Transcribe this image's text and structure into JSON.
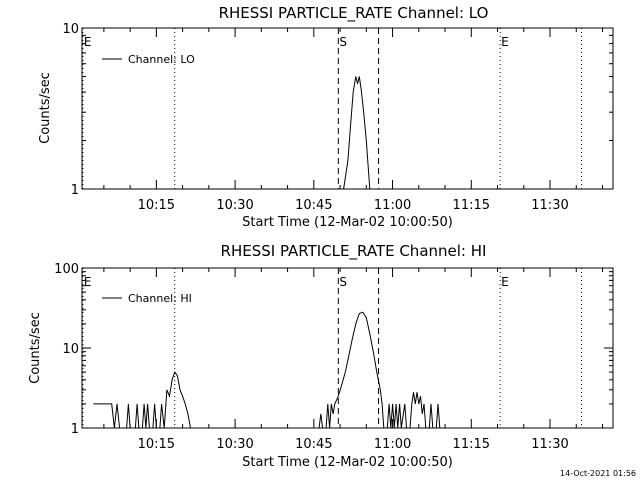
{
  "footer_stamp": "14-Oct-2021 01:56",
  "chart_data": [
    {
      "type": "line",
      "title": "RHESSI PARTICLE_RATE Channel: LO",
      "xlabel": "Start Time (12-Mar-02 10:00:50)",
      "ylabel": "Counts/sec",
      "y_scale": "log",
      "ylim": [
        1,
        10
      ],
      "y_ticks": [
        {
          "value": 1,
          "label": "1"
        },
        {
          "value": 10,
          "label": "10"
        }
      ],
      "xlim": [
        "10:00:50",
        "11:42:00"
      ],
      "x_ticks": [
        "10:15",
        "10:30",
        "10:45",
        "11:00",
        "11:15",
        "11:30"
      ],
      "legend": {
        "label": "Channel: LO",
        "placement": "top-left"
      },
      "markers": [
        {
          "time": "10:01:00",
          "label": "E",
          "style": "dotted"
        },
        {
          "time": "10:18:30",
          "label": "",
          "style": "dotted"
        },
        {
          "time": "10:49:40",
          "label": "S",
          "style": "dashed"
        },
        {
          "time": "10:57:20",
          "label": "",
          "style": "dashed"
        },
        {
          "time": "11:20:30",
          "label": "E",
          "style": "dotted"
        },
        {
          "time": "11:36:00",
          "label": "",
          "style": "dotted"
        }
      ],
      "series": [
        {
          "name": "Channel: LO",
          "points": [
            [
              "10:50:40",
              1
            ],
            [
              "10:51:30",
              1.5
            ],
            [
              "10:52:00",
              2.5
            ],
            [
              "10:52:30",
              4
            ],
            [
              "10:53:00",
              5
            ],
            [
              "10:53:20",
              4.5
            ],
            [
              "10:53:40",
              5
            ],
            [
              "10:54:00",
              4.2
            ],
            [
              "10:54:30",
              3
            ],
            [
              "10:55:00",
              2
            ],
            [
              "10:55:20",
              1.4
            ],
            [
              "10:55:40",
              1
            ]
          ]
        }
      ]
    },
    {
      "type": "line",
      "title": "RHESSI PARTICLE_RATE Channel: HI",
      "xlabel": "Start Time (12-Mar-02 10:00:50)",
      "ylabel": "Counts/sec",
      "y_scale": "log",
      "ylim": [
        1,
        100
      ],
      "y_ticks": [
        {
          "value": 1,
          "label": "1"
        },
        {
          "value": 10,
          "label": "10"
        },
        {
          "value": 100,
          "label": "100"
        }
      ],
      "xlim": [
        "10:00:50",
        "11:42:00"
      ],
      "x_ticks": [
        "10:15",
        "10:30",
        "10:45",
        "11:00",
        "11:15",
        "11:30"
      ],
      "legend": {
        "label": "Channel: HI",
        "placement": "top-left"
      },
      "markers": [
        {
          "time": "10:01:00",
          "label": "E",
          "style": "dotted"
        },
        {
          "time": "10:18:30",
          "label": "",
          "style": "dotted"
        },
        {
          "time": "10:49:40",
          "label": "S",
          "style": "dashed"
        },
        {
          "time": "10:57:20",
          "label": "",
          "style": "dashed"
        },
        {
          "time": "11:20:30",
          "label": "E",
          "style": "dotted"
        },
        {
          "time": "11:36:00",
          "label": "",
          "style": "dotted"
        }
      ],
      "series": [
        {
          "name": "Channel: HI",
          "points": [
            [
              "10:03:00",
              2
            ],
            [
              "10:06:30",
              2
            ],
            [
              "10:07:00",
              1
            ],
            [
              "10:07:30",
              2
            ],
            [
              "10:08:00",
              1
            ],
            [
              "10:09:20",
              1
            ],
            [
              "10:09:40",
              2
            ],
            [
              "10:10:00",
              1
            ],
            [
              "10:11:00",
              1
            ],
            [
              "10:11:20",
              2
            ],
            [
              "10:11:40",
              1
            ],
            [
              "10:12:20",
              1
            ],
            [
              "10:12:40",
              2
            ],
            [
              "10:13:00",
              1
            ],
            [
              "10:13:20",
              2
            ],
            [
              "10:13:40",
              1
            ],
            [
              "10:14:20",
              1
            ],
            [
              "10:14:40",
              2
            ],
            [
              "10:15:00",
              1
            ],
            [
              "10:15:40",
              1
            ],
            [
              "10:16:00",
              2
            ],
            [
              "10:16:30",
              1
            ],
            [
              "10:17:00",
              3
            ],
            [
              "10:17:30",
              2.5
            ],
            [
              "10:18:00",
              4
            ],
            [
              "10:18:30",
              5
            ],
            [
              "10:19:00",
              4.5
            ],
            [
              "10:19:30",
              3
            ],
            [
              "10:20:00",
              2.5
            ],
            [
              "10:20:30",
              2
            ],
            [
              "10:21:00",
              1.5
            ],
            [
              "10:21:30",
              1
            ],
            [
              "10:46:00",
              1
            ],
            [
              "10:46:20",
              1.5
            ],
            [
              "10:46:40",
              1
            ],
            [
              "10:47:20",
              1
            ],
            [
              "10:47:40",
              2
            ],
            [
              "10:48:00",
              1
            ],
            [
              "10:48:20",
              2
            ],
            [
              "10:48:40",
              1.5
            ],
            [
              "10:49:00",
              2
            ],
            [
              "10:49:40",
              2.5
            ],
            [
              "10:50:20",
              3.5
            ],
            [
              "10:51:00",
              5
            ],
            [
              "10:51:40",
              8
            ],
            [
              "10:52:20",
              13
            ],
            [
              "10:53:00",
              20
            ],
            [
              "10:53:40",
              27
            ],
            [
              "10:54:20",
              28
            ],
            [
              "10:55:00",
              24
            ],
            [
              "10:55:40",
              15
            ],
            [
              "10:56:20",
              9
            ],
            [
              "10:57:00",
              5
            ],
            [
              "10:57:40",
              3
            ],
            [
              "10:58:00",
              2
            ],
            [
              "10:58:20",
              1
            ],
            [
              "10:59:00",
              1
            ],
            [
              "10:59:20",
              2
            ],
            [
              "10:59:40",
              1
            ],
            [
              "11:00:00",
              2
            ],
            [
              "11:00:20",
              1
            ],
            [
              "11:00:40",
              2
            ],
            [
              "11:01:00",
              1
            ],
            [
              "11:01:20",
              2
            ],
            [
              "11:01:40",
              1
            ],
            [
              "11:02:20",
              2
            ],
            [
              "11:02:40",
              1
            ],
            [
              "11:03:20",
              1
            ],
            [
              "11:03:40",
              2
            ],
            [
              "11:04:00",
              2.8
            ],
            [
              "11:04:20",
              2
            ],
            [
              "11:04:40",
              2.8
            ],
            [
              "11:05:00",
              2
            ],
            [
              "11:05:20",
              2.5
            ],
            [
              "11:05:40",
              1.5
            ],
            [
              "11:06:00",
              2
            ],
            [
              "11:06:20",
              1
            ],
            [
              "11:07:00",
              1
            ],
            [
              "11:07:20",
              2
            ],
            [
              "11:07:40",
              1
            ],
            [
              "11:08:20",
              1
            ],
            [
              "11:08:40",
              2
            ],
            [
              "11:09:00",
              1
            ]
          ]
        }
      ]
    }
  ]
}
